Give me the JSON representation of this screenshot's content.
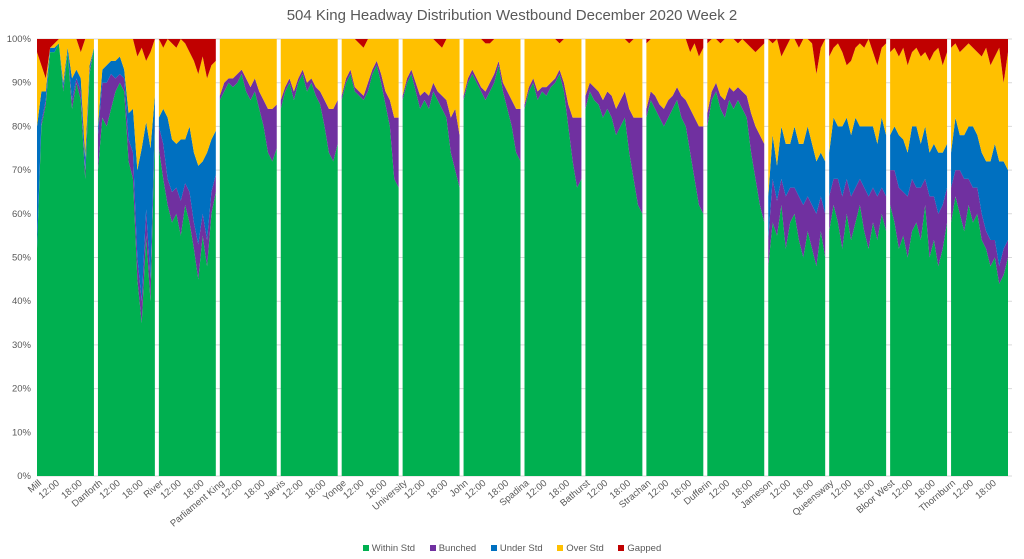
{
  "chart_data": {
    "type": "area",
    "stacked": true,
    "title": "504 King  Headway Distribution Westbound December 2020 Week 2",
    "xlabel": "",
    "ylabel": "",
    "ylim": [
      0,
      100
    ],
    "y_ticks": [
      "0%",
      "10%",
      "20%",
      "30%",
      "40%",
      "50%",
      "60%",
      "70%",
      "80%",
      "90%",
      "100%"
    ],
    "grid": true,
    "legend_position": "bottom",
    "series_names": [
      "Within Std",
      "Bunched",
      "Under Std",
      "Over Std",
      "Gapped"
    ],
    "series_colors": {
      "Within Std": "#00b050",
      "Bunched": "#7030a0",
      "Under Std": "#0070c0",
      "Over Std": "#ffc000",
      "Gapped": "#c00000"
    },
    "groups": [
      {
        "stop": "Mill",
        "ticks": [
          "12:00",
          "18:00"
        ],
        "within": [
          52,
          80,
          85,
          97,
          97,
          99,
          88,
          97,
          84,
          90,
          86,
          68,
          92,
          98
        ],
        "bunched": [
          0,
          1,
          1,
          0,
          0,
          0,
          1,
          0,
          2,
          1,
          2,
          2,
          1,
          0
        ],
        "under": [
          28,
          7,
          2,
          1,
          1,
          0,
          1,
          1,
          5,
          2,
          3,
          3,
          1,
          0
        ],
        "gapped": [
          3,
          6,
          9,
          2,
          1,
          0,
          0,
          0,
          0,
          0,
          3,
          0,
          0,
          0
        ]
      },
      {
        "stop": "Danforth",
        "ticks": [
          "12:00",
          "18:00"
        ],
        "within": [
          70,
          82,
          80,
          84,
          88,
          90,
          88,
          72,
          68,
          45,
          35,
          55,
          40,
          80
        ],
        "bunched": [
          8,
          8,
          10,
          8,
          3,
          2,
          3,
          5,
          6,
          5,
          5,
          6,
          5,
          2
        ],
        "under": [
          2,
          3,
          4,
          3,
          4,
          4,
          2,
          6,
          10,
          20,
          35,
          20,
          30,
          5
        ],
        "gapped": [
          0,
          0,
          0,
          0,
          0,
          0,
          0,
          0,
          0,
          4,
          2,
          5,
          3,
          0
        ]
      },
      {
        "stop": "River",
        "ticks": [
          "12:00",
          "18:00"
        ],
        "within": [
          75,
          68,
          62,
          58,
          60,
          55,
          62,
          58,
          52,
          45,
          55,
          48,
          60,
          65
        ],
        "bunched": [
          5,
          8,
          6,
          7,
          6,
          8,
          5,
          7,
          6,
          8,
          5,
          6,
          5,
          4
        ],
        "under": [
          2,
          8,
          14,
          12,
          10,
          14,
          10,
          15,
          16,
          18,
          12,
          20,
          12,
          10
        ],
        "gapped": [
          0,
          2,
          0,
          1,
          2,
          0,
          1,
          3,
          5,
          8,
          4,
          9,
          6,
          5
        ]
      },
      {
        "stop": "Parliament King",
        "ticks": [
          "12:00",
          "18:00"
        ],
        "within": [
          86,
          88,
          90,
          89,
          90,
          92,
          88,
          86,
          88,
          84,
          80,
          74,
          72,
          75
        ],
        "bunched": [
          1,
          2,
          1,
          2,
          2,
          1,
          3,
          3,
          3,
          4,
          6,
          10,
          12,
          10
        ],
        "under": [
          0,
          0,
          0,
          0,
          0,
          0,
          0,
          0,
          0,
          0,
          0,
          0,
          0,
          0
        ],
        "gapped": [
          0,
          0,
          0,
          0,
          0,
          0,
          0,
          0,
          0,
          0,
          0,
          0,
          0,
          0
        ]
      },
      {
        "stop": "Jarvis",
        "ticks": [
          "12:00",
          "18:00"
        ],
        "within": [
          84,
          88,
          90,
          86,
          90,
          92,
          88,
          90,
          87,
          85,
          80,
          74,
          72,
          76
        ],
        "bunched": [
          2,
          1,
          1,
          2,
          1,
          1,
          2,
          1,
          2,
          3,
          6,
          10,
          12,
          10
        ],
        "under": [
          0,
          0,
          0,
          0,
          0,
          0,
          0,
          0,
          0,
          0,
          0,
          0,
          0,
          0
        ],
        "gapped": [
          0,
          0,
          0,
          0,
          0,
          0,
          0,
          0,
          0,
          0,
          0,
          0,
          0,
          0
        ]
      },
      {
        "stop": "Yonge",
        "ticks": [
          "12:00",
          "18:00"
        ],
        "within": [
          86,
          90,
          92,
          88,
          87,
          86,
          88,
          92,
          94,
          90,
          85,
          80,
          68,
          66
        ],
        "bunched": [
          1,
          1,
          1,
          1,
          1,
          1,
          2,
          1,
          1,
          2,
          3,
          6,
          14,
          16
        ],
        "under": [
          0,
          0,
          0,
          0,
          0,
          0,
          0,
          0,
          0,
          0,
          0,
          0,
          0,
          0
        ],
        "gapped": [
          0,
          0,
          0,
          0,
          1,
          2,
          0,
          0,
          0,
          0,
          0,
          0,
          0,
          0
        ]
      },
      {
        "stop": "University",
        "ticks": [
          "12:00",
          "18:00"
        ],
        "within": [
          86,
          90,
          92,
          88,
          84,
          86,
          84,
          88,
          86,
          84,
          82,
          74,
          70,
          66
        ],
        "bunched": [
          1,
          1,
          1,
          2,
          3,
          2,
          3,
          2,
          2,
          3,
          4,
          8,
          14,
          12
        ],
        "under": [
          0,
          0,
          0,
          0,
          0,
          0,
          0,
          0,
          0,
          0,
          0,
          0,
          0,
          0
        ],
        "gapped": [
          0,
          0,
          0,
          0,
          0,
          0,
          0,
          0,
          1,
          2,
          0,
          0,
          0,
          0
        ]
      },
      {
        "stop": "John",
        "ticks": [
          "12:00",
          "18:00"
        ],
        "within": [
          86,
          90,
          92,
          90,
          88,
          86,
          88,
          90,
          94,
          88,
          84,
          80,
          74,
          72
        ],
        "bunched": [
          1,
          1,
          1,
          1,
          1,
          2,
          2,
          2,
          1,
          2,
          4,
          6,
          10,
          12
        ],
        "under": [
          0,
          0,
          0,
          0,
          0,
          0,
          0,
          0,
          0,
          0,
          0,
          0,
          0,
          0
        ],
        "gapped": [
          0,
          0,
          0,
          0,
          0,
          1,
          1,
          0,
          0,
          0,
          0,
          0,
          0,
          0
        ]
      },
      {
        "stop": "Spadina",
        "ticks": [
          "12:00",
          "18:00"
        ],
        "within": [
          84,
          88,
          90,
          86,
          88,
          87,
          89,
          90,
          92,
          88,
          80,
          72,
          66,
          68
        ],
        "bunched": [
          1,
          1,
          1,
          2,
          1,
          2,
          1,
          1,
          1,
          2,
          5,
          10,
          16,
          14
        ],
        "under": [
          0,
          0,
          0,
          0,
          0,
          0,
          0,
          0,
          0,
          0,
          0,
          0,
          0,
          0
        ],
        "gapped": [
          0,
          0,
          0,
          0,
          0,
          0,
          0,
          0,
          1,
          0,
          0,
          0,
          0,
          0
        ]
      },
      {
        "stop": "Bathurst",
        "ticks": [
          "12:00",
          "18:00"
        ],
        "within": [
          84,
          88,
          86,
          85,
          82,
          84,
          82,
          78,
          80,
          82,
          74,
          68,
          62,
          60
        ],
        "bunched": [
          3,
          2,
          3,
          3,
          4,
          4,
          5,
          6,
          6,
          6,
          10,
          14,
          20,
          22
        ],
        "under": [
          0,
          0,
          0,
          0,
          0,
          0,
          0,
          0,
          0,
          0,
          0,
          0,
          0,
          0
        ],
        "gapped": [
          0,
          0,
          0,
          0,
          0,
          0,
          0,
          0,
          0,
          0,
          1,
          0,
          0,
          0
        ]
      },
      {
        "stop": "Strachan",
        "ticks": [
          "12:00",
          "18:00"
        ],
        "within": [
          82,
          86,
          84,
          82,
          80,
          82,
          84,
          86,
          82,
          80,
          74,
          68,
          62,
          60
        ],
        "bunched": [
          2,
          2,
          3,
          3,
          4,
          4,
          3,
          3,
          5,
          6,
          10,
          14,
          18,
          20
        ],
        "under": [
          0,
          0,
          0,
          0,
          0,
          0,
          0,
          0,
          0,
          0,
          0,
          0,
          0,
          0
        ],
        "gapped": [
          1,
          0,
          0,
          0,
          0,
          0,
          0,
          0,
          0,
          0,
          3,
          1,
          4,
          2
        ]
      },
      {
        "stop": "Dufferin",
        "ticks": [
          "12:00",
          "18:00"
        ],
        "within": [
          80,
          86,
          88,
          84,
          82,
          86,
          84,
          86,
          84,
          82,
          74,
          68,
          62,
          58
        ],
        "bunched": [
          3,
          2,
          2,
          3,
          4,
          3,
          4,
          3,
          4,
          5,
          9,
          12,
          16,
          18
        ],
        "under": [
          0,
          0,
          0,
          0,
          0,
          0,
          0,
          0,
          0,
          0,
          0,
          0,
          0,
          0
        ],
        "gapped": [
          1,
          0,
          0,
          1,
          0,
          0,
          0,
          1,
          0,
          1,
          2,
          3,
          2,
          1
        ]
      },
      {
        "stop": "Jameson",
        "ticks": [
          "12:00",
          "18:00"
        ],
        "within": [
          48,
          58,
          55,
          62,
          52,
          58,
          60,
          54,
          50,
          56,
          52,
          48,
          56,
          50
        ],
        "bunched": [
          6,
          10,
          8,
          6,
          12,
          8,
          6,
          10,
          12,
          8,
          10,
          12,
          8,
          10
        ],
        "under": [
          10,
          10,
          8,
          12,
          12,
          10,
          14,
          12,
          14,
          16,
          14,
          12,
          10,
          12
        ],
        "gapped": [
          0,
          1,
          0,
          4,
          2,
          0,
          0,
          2,
          0,
          0,
          1,
          8,
          2,
          0
        ]
      },
      {
        "stop": "Queensway",
        "ticks": [
          "12:00",
          "18:00"
        ],
        "within": [
          56,
          62,
          58,
          52,
          60,
          54,
          58,
          62,
          56,
          52,
          58,
          54,
          60,
          56
        ],
        "bunched": [
          8,
          6,
          10,
          12,
          8,
          10,
          8,
          6,
          10,
          12,
          8,
          10,
          6,
          8
        ],
        "under": [
          10,
          14,
          12,
          16,
          14,
          14,
          16,
          12,
          14,
          16,
          14,
          12,
          16,
          14
        ],
        "gapped": [
          4,
          2,
          1,
          3,
          6,
          5,
          2,
          1,
          2,
          0,
          3,
          6,
          2,
          1
        ]
      },
      {
        "stop": "Bloor West",
        "ticks": [
          "12:00",
          "18:00"
        ],
        "within": [
          62,
          58,
          52,
          55,
          50,
          56,
          58,
          54,
          62,
          50,
          54,
          48,
          52,
          58
        ],
        "bunched": [
          8,
          12,
          14,
          10,
          14,
          12,
          8,
          12,
          6,
          14,
          10,
          12,
          10,
          8
        ],
        "under": [
          8,
          10,
          12,
          12,
          10,
          12,
          14,
          10,
          12,
          10,
          12,
          14,
          12,
          10
        ],
        "gapped": [
          3,
          2,
          4,
          2,
          6,
          3,
          2,
          4,
          3,
          5,
          3,
          2,
          6,
          3
        ]
      },
      {
        "stop": "Thornburn",
        "ticks": [
          "12:00",
          "18:00"
        ],
        "within": [
          58,
          64,
          60,
          56,
          62,
          58,
          60,
          54,
          52,
          48,
          50,
          44,
          46,
          50
        ],
        "bunched": [
          8,
          6,
          10,
          12,
          6,
          8,
          6,
          6,
          4,
          6,
          4,
          4,
          6,
          4
        ],
        "under": [
          8,
          12,
          8,
          10,
          12,
          14,
          12,
          14,
          16,
          18,
          22,
          24,
          20,
          16
        ],
        "gapped": [
          2,
          1,
          3,
          2,
          1,
          2,
          3,
          4,
          2,
          6,
          4,
          2,
          10,
          3
        ]
      }
    ]
  },
  "legend": {
    "items": [
      {
        "label": "Within Std",
        "color": "#00b050"
      },
      {
        "label": "Bunched",
        "color": "#7030a0"
      },
      {
        "label": "Under Std",
        "color": "#0070c0"
      },
      {
        "label": "Over Std",
        "color": "#ffc000"
      },
      {
        "label": "Gapped",
        "color": "#c00000"
      }
    ]
  }
}
